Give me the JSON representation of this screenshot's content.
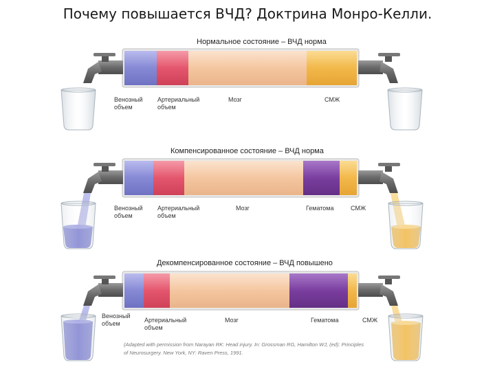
{
  "title": "Почему повышается ВЧД? Доктрина Монро-Келли.",
  "panels": [
    {
      "title": "Нормальное состояние – ВЧД норма",
      "labels": {
        "venous": "Венозный\nобъем",
        "arterial": "Артериальный\nобъем",
        "brain": "Мозг",
        "csf": "СМЖ"
      }
    },
    {
      "title": "Компенсированное состояние – ВЧД норма",
      "labels": {
        "venous": "Венозный\nобъем",
        "arterial": "Артериальный\nобъем",
        "brain": "Мозг",
        "hematoma": "Гематома",
        "csf": "СМЖ"
      }
    },
    {
      "title": "Декомпенсированное состояние – ВЧД повышено",
      "labels": {
        "venous": "Венозный\nобъем",
        "arterial": "Артериальный\nобъем",
        "brain": "Мозг",
        "hematoma": "Гематома",
        "csf": "СМЖ"
      }
    }
  ],
  "credit": "(Adapted with permission from Narayan RK: Head injury. In: Grossman RG, Hamilton WJ, (ed): Principles\nof Neurosurgery. New York, NY: Raven Press, 1991.",
  "colors": {
    "venous": "#8c8fd6",
    "arterial": "#e05a70",
    "brain": "#f5c7a0",
    "hematoma": "#7b3f9e",
    "csf": "#f0b84a",
    "tap": "#6e6e6e"
  }
}
